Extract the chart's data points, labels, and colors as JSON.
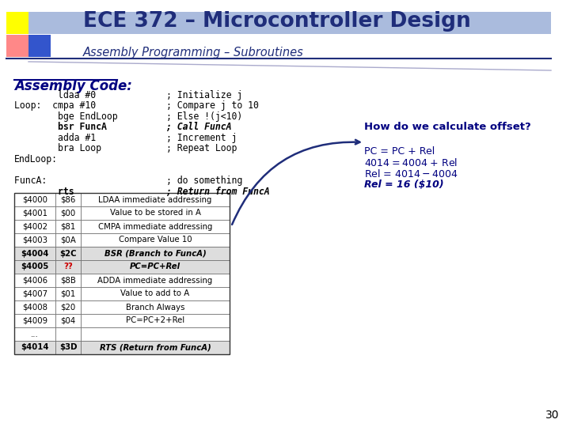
{
  "title": "ECE 372 – Microcontroller Design",
  "subtitle": "Assembly Programming – Subroutines",
  "bg_color": "#ffffff",
  "title_color": "#1f2d7a",
  "subtitle_color": "#1f2d7a",
  "assembly_label": "Assembly Code:",
  "assembly_code": [
    [
      "        ldaa #0      ",
      "; Initialize j",
      false
    ],
    [
      "Loop:  cmpa #10      ",
      "; Compare j to 10",
      false
    ],
    [
      "        bge EndLoop  ",
      "; Else !(j<10)",
      false
    ],
    [
      "        bsr FuncA    ",
      "; Call FuncA",
      true
    ],
    [
      "        adda #1      ",
      "; Increment j",
      false
    ],
    [
      "        bra Loop     ",
      "; Repeat Loop",
      false
    ],
    [
      "EndLoop:",
      "",
      false
    ],
    [
      "",
      "",
      false
    ],
    [
      "FuncA:               ",
      "; do something",
      false
    ],
    [
      "        rts          ",
      "; Return from FuncA",
      true
    ]
  ],
  "table_data": [
    [
      "$4000",
      "$86",
      "LDAA immediate addressing",
      false,
      false
    ],
    [
      "$4001",
      "$00",
      "Value to be stored in A",
      false,
      false
    ],
    [
      "$4002",
      "$81",
      "CMPA immediate addressing",
      false,
      false
    ],
    [
      "$4003",
      "$0A",
      "Compare Value 10",
      false,
      false
    ],
    [
      "$4004",
      "$2C",
      "BSR (Branch to FuncA)",
      true,
      false
    ],
    [
      "$4005",
      "??",
      "PC=PC+Rel",
      true,
      true
    ],
    [
      "$4006",
      "$8B",
      "ADDA immediate addressing",
      false,
      false
    ],
    [
      "$4007",
      "$01",
      "Value to add to A",
      false,
      false
    ],
    [
      "$4008",
      "$20",
      "Branch Always",
      false,
      false
    ],
    [
      "$4009",
      "$04",
      "PC=PC+2+Rel",
      false,
      false
    ],
    [
      "...",
      "",
      "",
      false,
      false
    ],
    [
      "$4014",
      "$3D",
      "RTS (Return from FuncA)",
      true,
      false
    ]
  ],
  "annotation_title": "How do we calculate offset?",
  "annotation_lines": [
    [
      "PC = PC + Rel",
      false,
      false
    ],
    [
      "$4014 = $4004 + Rel",
      false,
      false
    ],
    [
      "Rel = $4014 - $4004",
      false,
      false
    ],
    [
      "Rel = 16 ($10)",
      true,
      true
    ]
  ],
  "page_number": "30"
}
